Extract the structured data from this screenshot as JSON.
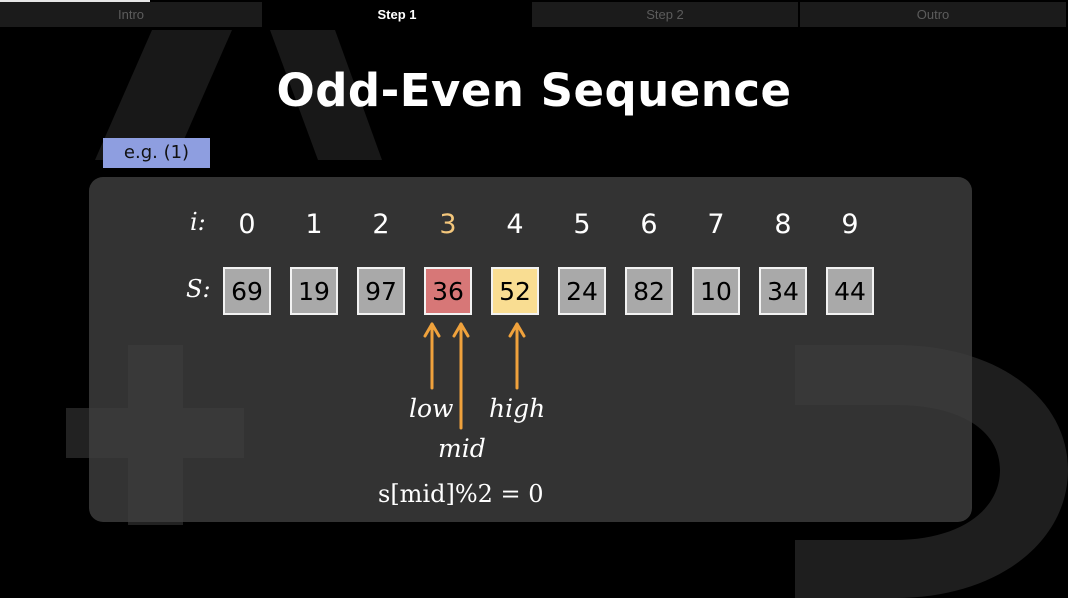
{
  "tabs": [
    {
      "label": "Intro",
      "active": false
    },
    {
      "label": "Step 1",
      "active": true
    },
    {
      "label": "Step 2",
      "active": false
    },
    {
      "label": "Outro",
      "active": false
    }
  ],
  "title": "Odd-Even Sequence",
  "example_label": "e.g. (1)",
  "row_labels": {
    "index": "i:",
    "sequence": "S:"
  },
  "indices": [
    "0",
    "1",
    "2",
    "3",
    "4",
    "5",
    "6",
    "7",
    "8",
    "9"
  ],
  "values": [
    "69",
    "19",
    "97",
    "36",
    "52",
    "24",
    "82",
    "10",
    "34",
    "44"
  ],
  "highlight_index": 3,
  "pointers": {
    "low": {
      "label": "low",
      "index": 3
    },
    "mid": {
      "label": "mid",
      "index": 3
    },
    "high": {
      "label": "high",
      "index": 4
    }
  },
  "formula": "s[mid]%2 = 0",
  "colors": {
    "low_cell": "#d77777",
    "high_cell": "#f9dd92",
    "default_cell": "#a9a9a9",
    "arrow": "#f0a23c",
    "highlight_index": "#f4c77c",
    "badge": "#8e9ee0"
  }
}
